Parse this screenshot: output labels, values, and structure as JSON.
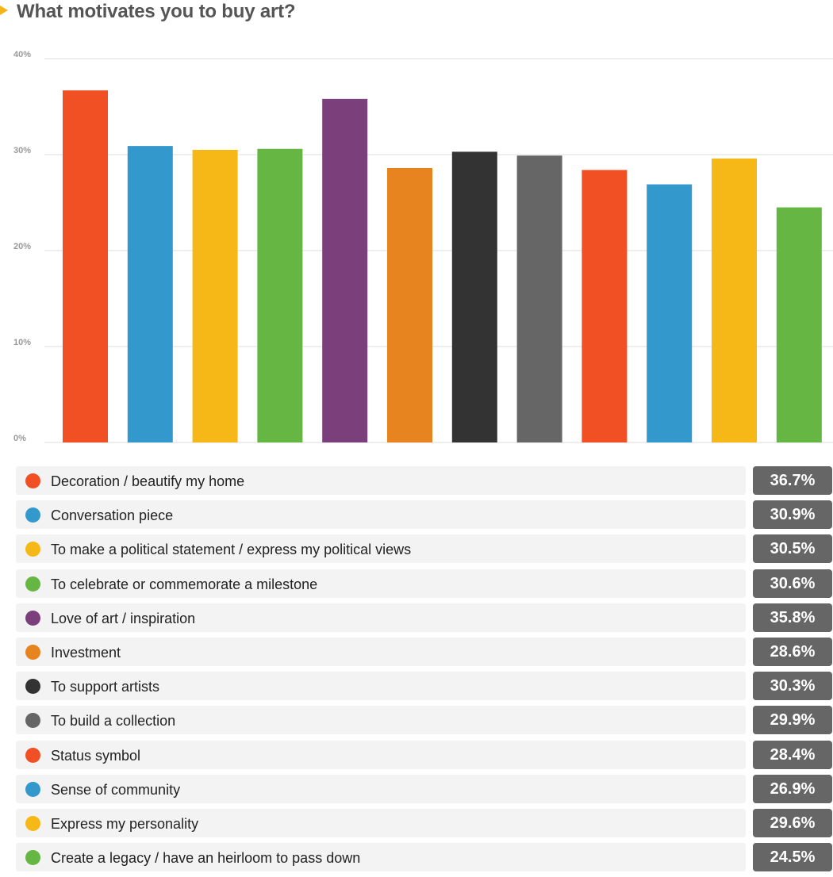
{
  "header": {
    "title": "What motivates you to buy art?",
    "marker_color": "#f5b516"
  },
  "chart_data": {
    "type": "bar",
    "title": "What motivates you to buy art?",
    "xlabel": "",
    "ylabel": "",
    "ylim": [
      0,
      40
    ],
    "yticks": [
      "0%",
      "10%",
      "20%",
      "30%",
      "40%"
    ],
    "grid": true,
    "categories": [
      "Decoration / beautify my home",
      "Conversation piece",
      "To make a political statement / express my political views",
      "To celebrate or commemorate a milestone",
      "Love of art / inspiration",
      "Investment",
      "To support artists",
      "To build a collection",
      "Status symbol",
      "Sense of community",
      "Express my personality",
      "Create a legacy / have an heirloom to pass down"
    ],
    "values": [
      36.7,
      30.9,
      30.5,
      30.6,
      35.8,
      28.6,
      30.3,
      29.9,
      28.4,
      26.9,
      29.6,
      24.5
    ],
    "colors": [
      "#f05023",
      "#3399cc",
      "#f6b816",
      "#66b644",
      "#7b3f7b",
      "#e8841f",
      "#333333",
      "#666666",
      "#f05023",
      "#3399cc",
      "#f6b816",
      "#66b644"
    ]
  },
  "legend": {
    "items": [
      {
        "label": "Decoration / beautify my home",
        "value": "36.7%"
      },
      {
        "label": "Conversation piece",
        "value": "30.9%"
      },
      {
        "label": "To make a political statement / express my political views",
        "value": "30.5%"
      },
      {
        "label": "To celebrate or commemorate a milestone",
        "value": "30.6%"
      },
      {
        "label": "Love of art / inspiration",
        "value": "35.8%"
      },
      {
        "label": "Investment",
        "value": "28.6%"
      },
      {
        "label": "To support artists",
        "value": "30.3%"
      },
      {
        "label": "To build a collection",
        "value": "29.9%"
      },
      {
        "label": "Status symbol",
        "value": "28.4%"
      },
      {
        "label": "Sense of community",
        "value": "26.9%"
      },
      {
        "label": "Express my personality",
        "value": "29.6%"
      },
      {
        "label": "Create a legacy / have an heirloom to pass down",
        "value": "24.5%"
      }
    ]
  }
}
